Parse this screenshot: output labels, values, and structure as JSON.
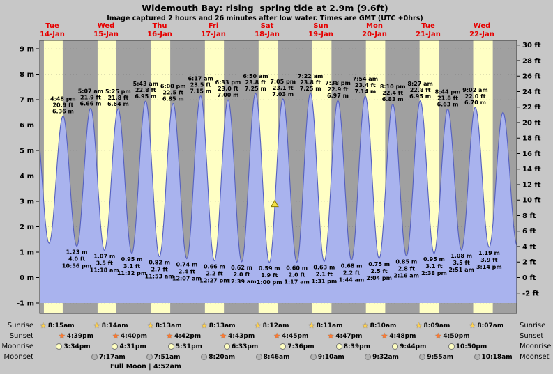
{
  "title": "Widemouth Bay: rising  spring tide at 2.9m (9.6ft)",
  "subtitle": "Image captured 2 hours and 26 minutes after low water. Times are GMT (UTC +0hrs)",
  "days": [
    {
      "weekday": "Tue",
      "date": "14-Jan"
    },
    {
      "weekday": "Wed",
      "date": "15-Jan"
    },
    {
      "weekday": "Thu",
      "date": "16-Jan"
    },
    {
      "weekday": "Fri",
      "date": "17-Jan"
    },
    {
      "weekday": "Sat",
      "date": "18-Jan"
    },
    {
      "weekday": "Sun",
      "date": "19-Jan"
    },
    {
      "weekday": "Mon",
      "date": "20-Jan"
    },
    {
      "weekday": "Tue",
      "date": "21-Jan"
    },
    {
      "weekday": "Wed",
      "date": "22-Jan"
    }
  ],
  "axes": {
    "left_ticks": [
      "9 m",
      "8 m",
      "7 m",
      "6 m",
      "5 m",
      "4 m",
      "3 m",
      "2 m",
      "1 m",
      "0 m",
      "-1 m"
    ],
    "right_ticks": [
      "30 ft",
      "28 ft",
      "26 ft",
      "24 ft",
      "22 ft",
      "20 ft",
      "18 ft",
      "16 ft",
      "14 ft",
      "12 ft",
      "10 ft",
      "8 ft",
      "6 ft",
      "4 ft",
      "2 ft",
      "0 ft",
      "-2 ft"
    ]
  },
  "chart_data": {
    "type": "area",
    "name": "tide height",
    "ylim_m": [
      -1,
      9
    ],
    "tide_events": [
      {
        "kind": "high",
        "day": 0,
        "time": "4:25 am",
        "m": "6.3 m",
        "labeled": false
      },
      {
        "kind": "low",
        "day": 0,
        "time": "10:33 am",
        "m": "1.35 m",
        "labeled": false
      },
      {
        "kind": "high",
        "day": 0,
        "time": "4:48 pm",
        "ft": "20.9 ft",
        "m": "6.36 m",
        "labeled": true
      },
      {
        "kind": "low",
        "day": 0,
        "time": "10:56 pm",
        "ft": "4.0 ft",
        "m": "1.23 m",
        "labeled": true
      },
      {
        "kind": "high",
        "day": 1,
        "time": "5:07 am",
        "ft": "21.9 ft",
        "m": "6.66 m",
        "labeled": true
      },
      {
        "kind": "low",
        "day": 1,
        "time": "11:18 am",
        "ft": "3.5 ft",
        "m": "1.07 m",
        "labeled": true
      },
      {
        "kind": "high",
        "day": 1,
        "time": "5:25 pm",
        "ft": "21.8 ft",
        "m": "6.64 m",
        "labeled": true
      },
      {
        "kind": "low",
        "day": 1,
        "time": "11:32 pm",
        "ft": "3.1 ft",
        "m": "0.95 m",
        "labeled": true
      },
      {
        "kind": "high",
        "day": 2,
        "time": "5:43 am",
        "ft": "22.8 ft",
        "m": "6.95 m",
        "labeled": true
      },
      {
        "kind": "low",
        "day": 2,
        "time": "11:53 am",
        "ft": "2.7 ft",
        "m": "0.82 m",
        "labeled": true
      },
      {
        "kind": "high",
        "day": 2,
        "time": "6:00 pm",
        "ft": "22.5 ft",
        "m": "6.85 m",
        "labeled": true
      },
      {
        "kind": "low",
        "day": 3,
        "time": "12:07 am",
        "ft": "2.4 ft",
        "m": "0.74 m",
        "labeled": true
      },
      {
        "kind": "high",
        "day": 3,
        "time": "6:17 am",
        "ft": "23.5 ft",
        "m": "7.15 m",
        "labeled": true
      },
      {
        "kind": "low",
        "day": 3,
        "time": "12:27 pm",
        "ft": "2.2 ft",
        "m": "0.66 m",
        "labeled": true
      },
      {
        "kind": "high",
        "day": 3,
        "time": "6:33 pm",
        "ft": "23.0 ft",
        "m": "7.00 m",
        "labeled": true
      },
      {
        "kind": "low",
        "day": 4,
        "time": "12:39 am",
        "ft": "2.0 ft",
        "m": "0.62 m",
        "labeled": true
      },
      {
        "kind": "high",
        "day": 4,
        "time": "6:50 am",
        "ft": "23.8 ft",
        "m": "7.25 m",
        "labeled": true
      },
      {
        "kind": "low",
        "day": 4,
        "time": "1:00 pm",
        "ft": "1.9 ft",
        "m": "0.59 m",
        "labeled": true
      },
      {
        "kind": "high",
        "day": 4,
        "time": "7:05 pm",
        "ft": "23.1 ft",
        "m": "7.03 m",
        "labeled": true
      },
      {
        "kind": "low",
        "day": 5,
        "time": "1:17 am",
        "ft": "2.0 ft",
        "m": "0.60 m",
        "labeled": true
      },
      {
        "kind": "high",
        "day": 5,
        "time": "7:22 am",
        "ft": "23.8 ft",
        "m": "7.25 m",
        "labeled": true
      },
      {
        "kind": "low",
        "day": 5,
        "time": "1:31 pm",
        "ft": "2.1 ft",
        "m": "0.63 m",
        "labeled": true
      },
      {
        "kind": "high",
        "day": 5,
        "time": "7:38 pm",
        "ft": "22.9 ft",
        "m": "6.97 m",
        "labeled": true
      },
      {
        "kind": "low",
        "day": 6,
        "time": "1:44 am",
        "ft": "2.2 ft",
        "m": "0.68 m",
        "labeled": true
      },
      {
        "kind": "high",
        "day": 6,
        "time": "7:54 am",
        "ft": "23.4 ft",
        "m": "7.14 m",
        "labeled": true
      },
      {
        "kind": "low",
        "day": 6,
        "time": "2:04 pm",
        "ft": "2.5 ft",
        "m": "0.75 m",
        "labeled": true
      },
      {
        "kind": "high",
        "day": 6,
        "time": "8:10 pm",
        "ft": "22.4 ft",
        "m": "6.83 m",
        "labeled": true
      },
      {
        "kind": "low",
        "day": 7,
        "time": "2:16 am",
        "ft": "2.8 ft",
        "m": "0.85 m",
        "labeled": true
      },
      {
        "kind": "high",
        "day": 7,
        "time": "8:27 am",
        "ft": "22.8 ft",
        "m": "6.95 m",
        "labeled": true
      },
      {
        "kind": "low",
        "day": 7,
        "time": "2:38 pm",
        "ft": "3.1 ft",
        "m": "0.95 m",
        "labeled": true
      },
      {
        "kind": "high",
        "day": 7,
        "time": "8:44 pm",
        "ft": "21.8 ft",
        "m": "6.63 m",
        "labeled": true
      },
      {
        "kind": "low",
        "day": 8,
        "time": "2:51 am",
        "ft": "3.5 ft",
        "m": "1.08 m",
        "labeled": true
      },
      {
        "kind": "high",
        "day": 8,
        "time": "9:02 am",
        "ft": "22.0 ft",
        "m": "6.70 m",
        "labeled": true
      },
      {
        "kind": "low",
        "day": 8,
        "time": "3:14 pm",
        "ft": "3.9 ft",
        "m": "1.19 m",
        "labeled": true
      },
      {
        "kind": "high",
        "day": 8,
        "time": "9:25 pm",
        "m": "6.5 m",
        "labeled": false
      }
    ],
    "current_marker": {
      "day": 4,
      "time": "3:26 pm",
      "m": 2.9,
      "symbol": "triangle"
    }
  },
  "almanac": {
    "rows": [
      {
        "label": "Sunrise",
        "icon": "sunrise-star",
        "entries": [
          {
            "day": 0,
            "time": "8:15am"
          },
          {
            "day": 1,
            "time": "8:14am"
          },
          {
            "day": 2,
            "time": "8:13am"
          },
          {
            "day": 3,
            "time": "8:13am"
          },
          {
            "day": 4,
            "time": "8:12am"
          },
          {
            "day": 5,
            "time": "8:11am"
          },
          {
            "day": 6,
            "time": "8:10am"
          },
          {
            "day": 7,
            "time": "8:09am"
          },
          {
            "day": 8,
            "time": "8:07am"
          }
        ]
      },
      {
        "label": "Sunset",
        "icon": "sunset-star",
        "entries": [
          {
            "day": 0,
            "time": "4:39pm"
          },
          {
            "day": 1,
            "time": "4:40pm"
          },
          {
            "day": 2,
            "time": "4:42pm"
          },
          {
            "day": 3,
            "time": "4:43pm"
          },
          {
            "day": 4,
            "time": "4:45pm"
          },
          {
            "day": 5,
            "time": "4:47pm"
          },
          {
            "day": 6,
            "time": "4:48pm"
          },
          {
            "day": 7,
            "time": "4:50pm"
          }
        ]
      },
      {
        "label": "Moonrise",
        "icon": "moon-light",
        "entries": [
          {
            "day": 0,
            "time": "3:34pm"
          },
          {
            "day": 1,
            "time": "4:31pm"
          },
          {
            "day": 2,
            "time": "5:31pm"
          },
          {
            "day": 3,
            "time": "6:33pm"
          },
          {
            "day": 4,
            "time": "7:36pm"
          },
          {
            "day": 5,
            "time": "8:39pm"
          },
          {
            "day": 6,
            "time": "9:44pm"
          },
          {
            "day": 7,
            "time": "10:50pm"
          }
        ]
      },
      {
        "label": "Moonset",
        "icon": "moon-gray",
        "entries": [
          {
            "day": 1,
            "time": "7:17am"
          },
          {
            "day": 2,
            "time": "7:51am"
          },
          {
            "day": 3,
            "time": "8:20am"
          },
          {
            "day": 4,
            "time": "8:46am"
          },
          {
            "day": 5,
            "time": "9:10am"
          },
          {
            "day": 6,
            "time": "9:32am"
          },
          {
            "day": 7,
            "time": "9:55am"
          },
          {
            "day": 8,
            "time": "10:18am"
          }
        ]
      }
    ],
    "footnote": "Full Moon | 4:52am"
  },
  "colors": {
    "outer_bg": "#c7c7c7",
    "night_band": "#a0a0a0",
    "day_band": "#ffffc4",
    "tide_fill": "#a9b3ee",
    "tide_stroke": "#5560c0",
    "plot_border": "#3a3a3a",
    "grid": "#555555",
    "day_label": "#e60000",
    "marker_fill": "#f2e045",
    "marker_stroke": "#8a7a00",
    "sunrise_icon": "#ffd24d",
    "sunset_icon": "#ff7a33",
    "moonrise_icon": "#ffffc0",
    "moonset_icon": "#b5b5b5",
    "text": "#000000"
  }
}
